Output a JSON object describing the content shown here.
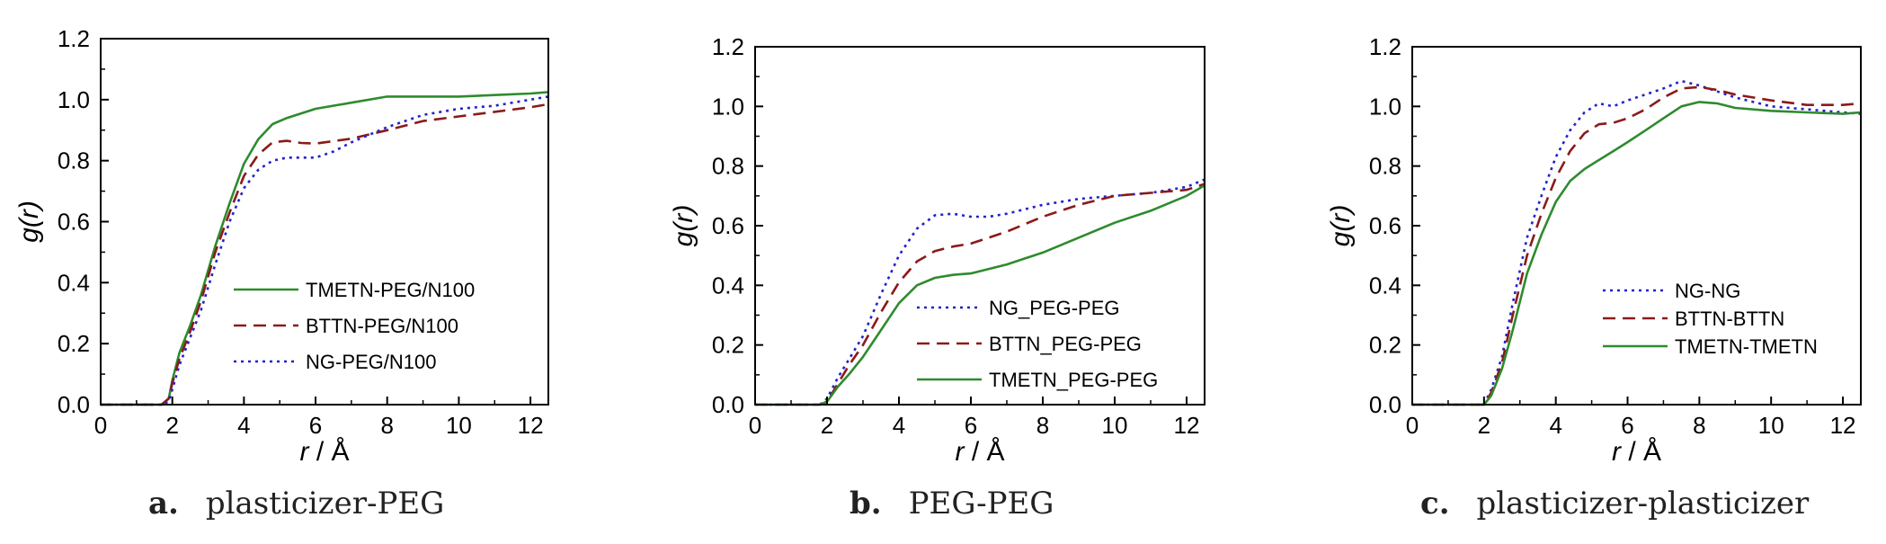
{
  "chart_data": [
    {
      "type": "line",
      "panel_label": "a.",
      "caption": "plasticizer-PEG",
      "xlabel_var": "r",
      "xlabel_unit": " / Å",
      "ylabel": "g(r)",
      "xlim": [
        0,
        12.5
      ],
      "ylim": [
        0,
        1.2
      ],
      "xticks": [
        "0",
        "2",
        "4",
        "6",
        "8",
        "10",
        "12"
      ],
      "yticks": [
        "0.0",
        "0.2",
        "0.4",
        "0.6",
        "0.8",
        "1.0",
        "1.2"
      ],
      "legend": {
        "placement": "center-left"
      },
      "series": [
        {
          "name": "TMETN-PEG/N100",
          "color": "#2e8b2e",
          "dash": "solid",
          "x": [
            0,
            1.7,
            1.9,
            2.0,
            2.2,
            2.5,
            2.8,
            3.2,
            3.6,
            4.0,
            4.4,
            4.8,
            5.2,
            5.6,
            6.0,
            7.0,
            8.0,
            9.0,
            10.0,
            11.0,
            12.0,
            12.5
          ],
          "y": [
            0,
            0,
            0.02,
            0.08,
            0.17,
            0.26,
            0.36,
            0.52,
            0.66,
            0.79,
            0.87,
            0.92,
            0.94,
            0.955,
            0.97,
            0.99,
            1.01,
            1.01,
            1.01,
            1.015,
            1.02,
            1.025
          ]
        },
        {
          "name": "BTTN-PEG/N100",
          "color": "#8b1a1a",
          "dash": "dashed",
          "x": [
            0,
            1.7,
            1.9,
            2.0,
            2.2,
            2.5,
            2.8,
            3.2,
            3.6,
            4.0,
            4.4,
            4.8,
            5.2,
            5.6,
            6.0,
            7.0,
            8.0,
            9.0,
            10.0,
            11.0,
            12.0,
            12.5
          ],
          "y": [
            0,
            0,
            0.02,
            0.07,
            0.15,
            0.24,
            0.34,
            0.5,
            0.63,
            0.75,
            0.82,
            0.86,
            0.865,
            0.858,
            0.856,
            0.872,
            0.9,
            0.93,
            0.945,
            0.96,
            0.975,
            0.985
          ]
        },
        {
          "name": "NG-PEG/N100",
          "color": "#2222cc",
          "dash": "dotted",
          "x": [
            0,
            1.7,
            1.9,
            2.0,
            2.2,
            2.5,
            2.8,
            3.2,
            3.6,
            4.0,
            4.4,
            4.8,
            5.2,
            5.6,
            6.0,
            6.5,
            7.0,
            8.0,
            9.0,
            10.0,
            11.0,
            12.0,
            12.5
          ],
          "y": [
            0,
            0,
            0.01,
            0.05,
            0.13,
            0.22,
            0.31,
            0.46,
            0.6,
            0.71,
            0.77,
            0.8,
            0.81,
            0.81,
            0.81,
            0.83,
            0.86,
            0.91,
            0.95,
            0.97,
            0.98,
            1.0,
            1.01
          ]
        }
      ]
    },
    {
      "type": "line",
      "panel_label": "b.",
      "caption": "PEG-PEG",
      "xlabel_var": "r",
      "xlabel_unit": " / Å",
      "ylabel": "g(r)",
      "xlim": [
        0,
        12.5
      ],
      "ylim": [
        0,
        1.2
      ],
      "xticks": [
        "0",
        "2",
        "4",
        "6",
        "8",
        "10",
        "12"
      ],
      "yticks": [
        "0.0",
        "0.2",
        "0.4",
        "0.6",
        "0.8",
        "1.0",
        "1.2"
      ],
      "legend": {
        "placement": "center-right"
      },
      "series": [
        {
          "name": "NG_PEG-PEG",
          "color": "#2222cc",
          "dash": "dotted",
          "x": [
            0,
            1.8,
            2.0,
            2.3,
            2.6,
            3.0,
            3.5,
            4.0,
            4.5,
            5.0,
            5.5,
            6.0,
            6.5,
            7.0,
            8.0,
            9.0,
            10.0,
            11.0,
            12.0,
            12.5
          ],
          "y": [
            0,
            0,
            0.02,
            0.09,
            0.15,
            0.23,
            0.37,
            0.5,
            0.59,
            0.635,
            0.64,
            0.63,
            0.63,
            0.64,
            0.67,
            0.69,
            0.7,
            0.71,
            0.73,
            0.755
          ]
        },
        {
          "name": "BTTN_PEG-PEG",
          "color": "#8b1a1a",
          "dash": "dashed",
          "x": [
            0,
            1.8,
            2.0,
            2.3,
            2.6,
            3.0,
            3.5,
            4.0,
            4.5,
            5.0,
            5.5,
            6.0,
            6.5,
            7.0,
            8.0,
            9.0,
            10.0,
            11.0,
            12.0,
            12.5
          ],
          "y": [
            0,
            0,
            0.01,
            0.07,
            0.13,
            0.2,
            0.31,
            0.41,
            0.48,
            0.515,
            0.53,
            0.54,
            0.56,
            0.58,
            0.63,
            0.67,
            0.7,
            0.71,
            0.72,
            0.74
          ]
        },
        {
          "name": "TMETN_PEG-PEG",
          "color": "#2e8b2e",
          "dash": "solid",
          "x": [
            0,
            1.8,
            2.0,
            2.3,
            2.6,
            3.0,
            3.5,
            4.0,
            4.5,
            5.0,
            5.5,
            6.0,
            6.5,
            7.0,
            8.0,
            9.0,
            10.0,
            11.0,
            12.0,
            12.5
          ],
          "y": [
            0,
            0,
            0.01,
            0.06,
            0.1,
            0.16,
            0.25,
            0.34,
            0.4,
            0.425,
            0.435,
            0.44,
            0.455,
            0.47,
            0.51,
            0.56,
            0.61,
            0.65,
            0.7,
            0.735
          ]
        }
      ]
    },
    {
      "type": "line",
      "panel_label": "c.",
      "caption": "plasticizer-plasticizer",
      "xlabel_var": "r",
      "xlabel_unit": " / Å",
      "ylabel": "g(r)",
      "xlim": [
        0,
        12.5
      ],
      "ylim": [
        0,
        1.2
      ],
      "xticks": [
        "0",
        "2",
        "4",
        "6",
        "8",
        "10",
        "12"
      ],
      "yticks": [
        "0.0",
        "0.2",
        "0.4",
        "0.6",
        "0.8",
        "1.0",
        "1.2"
      ],
      "legend": {
        "placement": "center"
      },
      "series": [
        {
          "name": "NG-NG",
          "color": "#2222cc",
          "dash": "dotted",
          "x": [
            0,
            2.0,
            2.2,
            2.5,
            2.8,
            3.2,
            3.6,
            4.0,
            4.4,
            4.8,
            5.2,
            5.6,
            6.0,
            6.5,
            7.0,
            7.5,
            8.0,
            8.5,
            9.0,
            10.0,
            11.0,
            12.0,
            12.5
          ],
          "y": [
            0,
            0,
            0.05,
            0.16,
            0.34,
            0.56,
            0.7,
            0.83,
            0.92,
            0.98,
            1.01,
            1.0,
            1.02,
            1.04,
            1.06,
            1.085,
            1.07,
            1.05,
            1.03,
            1.0,
            0.99,
            0.98,
            0.975
          ]
        },
        {
          "name": "BTTN-BTTN",
          "color": "#8b1a1a",
          "dash": "dashed",
          "x": [
            0,
            2.0,
            2.2,
            2.5,
            2.8,
            3.2,
            3.6,
            4.0,
            4.4,
            4.8,
            5.2,
            5.6,
            6.0,
            6.5,
            7.0,
            7.5,
            8.0,
            8.5,
            9.0,
            10.0,
            11.0,
            12.0,
            12.5
          ],
          "y": [
            0,
            0,
            0.04,
            0.14,
            0.3,
            0.5,
            0.64,
            0.76,
            0.85,
            0.91,
            0.94,
            0.945,
            0.96,
            0.99,
            1.03,
            1.06,
            1.065,
            1.055,
            1.04,
            1.02,
            1.005,
            1.005,
            1.01
          ]
        },
        {
          "name": "TMETN-TMETN",
          "color": "#2e8b2e",
          "dash": "solid",
          "x": [
            0,
            2.0,
            2.2,
            2.5,
            2.8,
            3.2,
            3.6,
            4.0,
            4.4,
            4.8,
            5.2,
            5.6,
            6.0,
            6.5,
            7.0,
            7.5,
            8.0,
            8.5,
            9.0,
            10.0,
            11.0,
            12.0,
            12.5
          ],
          "y": [
            0,
            0,
            0.03,
            0.12,
            0.25,
            0.44,
            0.57,
            0.68,
            0.75,
            0.79,
            0.82,
            0.85,
            0.88,
            0.92,
            0.96,
            1.0,
            1.015,
            1.01,
            0.995,
            0.985,
            0.98,
            0.975,
            0.98
          ]
        }
      ]
    }
  ]
}
